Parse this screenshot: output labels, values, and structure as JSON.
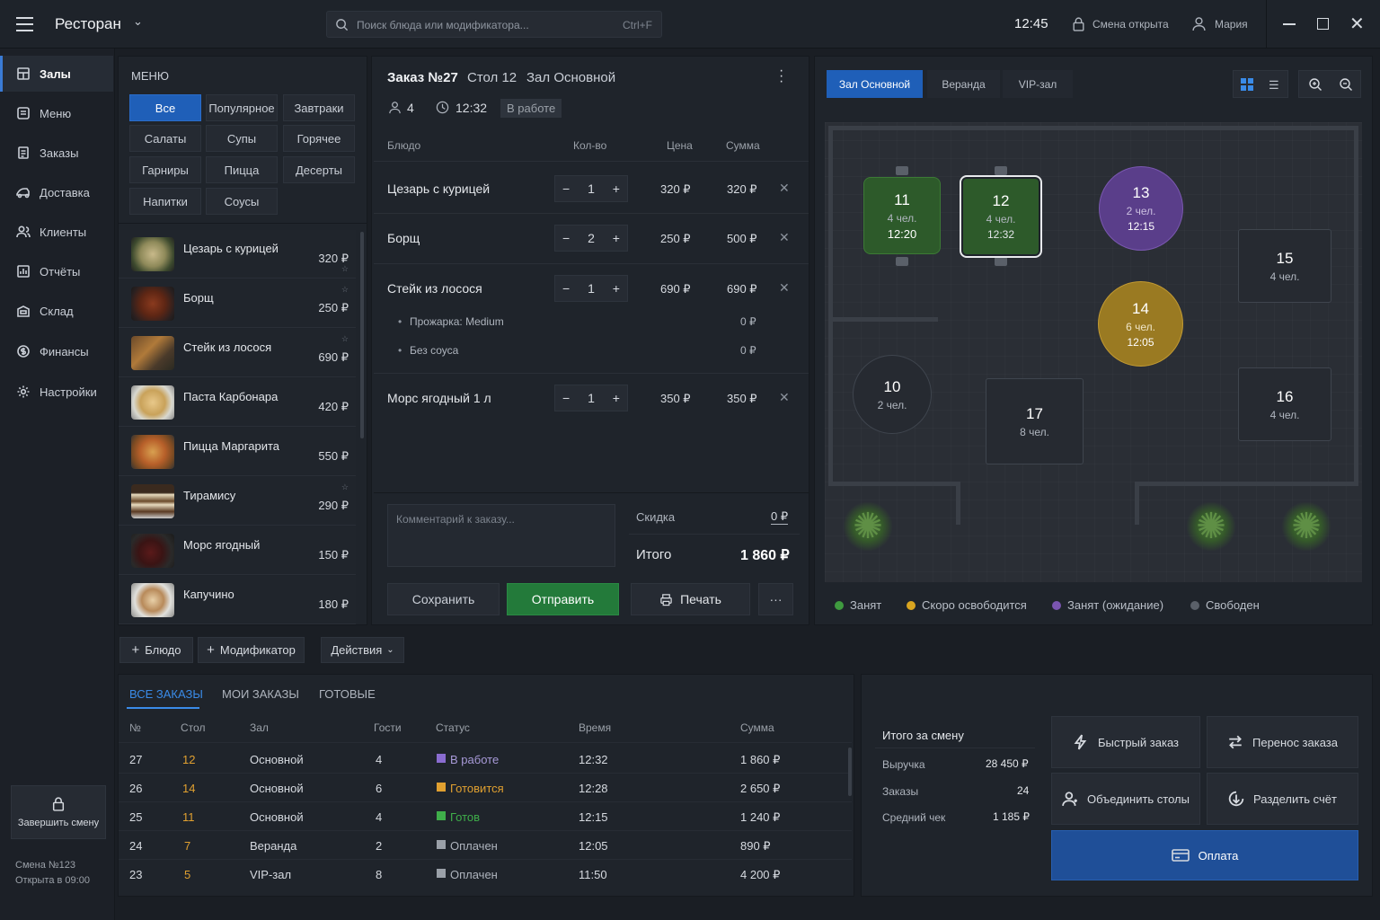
{
  "app": {
    "title": "Ресторан"
  },
  "search": {
    "placeholder": "Поиск блюда или модификатора...",
    "shortcut": "Ctrl+F"
  },
  "header": {
    "time": "12:45",
    "shift_status": "Смена открыта",
    "user": "Мария"
  },
  "sidebar": {
    "items": [
      {
        "label": "Залы",
        "icon": "hall-icon"
      },
      {
        "label": "Меню",
        "icon": "menu-icon"
      },
      {
        "label": "Заказы",
        "icon": "orders-icon"
      },
      {
        "label": "Доставка",
        "icon": "delivery-icon"
      },
      {
        "label": "Клиенты",
        "icon": "clients-icon"
      },
      {
        "label": "Отчёты",
        "icon": "reports-icon"
      },
      {
        "label": "Склад",
        "icon": "warehouse-icon"
      },
      {
        "label": "Финансы",
        "icon": "finance-icon"
      },
      {
        "label": "Настройки",
        "icon": "settings-icon"
      }
    ],
    "end_shift": "Завершить смену",
    "shift_no": "Смена №123",
    "shift_opened": "Открыта в 09:00"
  },
  "menu": {
    "title": "МЕНЮ",
    "categories": [
      "Все",
      "Популярное",
      "Завтраки",
      "Салаты",
      "Супы",
      "Горячее",
      "Гарниры",
      "Пицца",
      "Десерты",
      "Напитки",
      "Соусы"
    ],
    "dishes": [
      {
        "name": "Цезарь с курицей",
        "price": "320 ₽"
      },
      {
        "name": "Борщ",
        "price": "250 ₽"
      },
      {
        "name": "Стейк из лосося",
        "price": "690 ₽"
      },
      {
        "name": "Паста Карбонара",
        "price": "420 ₽"
      },
      {
        "name": "Пицца Маргарита",
        "price": "550 ₽"
      },
      {
        "name": "Тирамису",
        "price": "290 ₽"
      },
      {
        "name": "Морс ягодный",
        "price": "150 ₽"
      },
      {
        "name": "Капучино",
        "price": "180 ₽"
      }
    ]
  },
  "order": {
    "title": "Заказ №27",
    "table": "Стол 12",
    "hall": "Зал Основной",
    "guests": "4",
    "time": "12:32",
    "status": "В работе",
    "columns": {
      "dish": "Блюдо",
      "qty": "Кол-во",
      "price": "Цена",
      "sum": "Сумма"
    },
    "items": [
      {
        "name": "Цезарь с курицей",
        "qty": "1",
        "price": "320 ₽",
        "sum": "320 ₽"
      },
      {
        "name": "Борщ",
        "qty": "2",
        "price": "250 ₽",
        "sum": "500 ₽"
      },
      {
        "name": "Стейк из лосося",
        "qty": "1",
        "price": "690 ₽",
        "sum": "690 ₽"
      },
      {
        "name": "Морс ягодный 1 л",
        "qty": "1",
        "price": "350 ₽",
        "sum": "350 ₽"
      }
    ],
    "modifiers": [
      {
        "name": "Прожарка: Medium",
        "sum": "0 ₽"
      },
      {
        "name": "Без соуса",
        "sum": "0 ₽"
      }
    ],
    "comment_placeholder": "Комментарий к заказу...",
    "discount_label": "Скидка",
    "discount_value": "0 ₽",
    "total_label": "Итого",
    "total_value": "1 860 ₽",
    "save": "Сохранить",
    "send": "Отправить",
    "print": "Печать",
    "more": "···"
  },
  "floor": {
    "tabs": [
      "Зал Основной",
      "Веранда",
      "VIP-зал"
    ],
    "tables": [
      {
        "num": "11",
        "guests": "4 чел.",
        "time": "12:20"
      },
      {
        "num": "12",
        "guests": "4 чел.",
        "time": "12:32"
      },
      {
        "num": "13",
        "guests": "2 чел.",
        "time": "12:15"
      },
      {
        "num": "15",
        "guests": "4 чел."
      },
      {
        "num": "14",
        "guests": "6 чел.",
        "time": "12:05"
      },
      {
        "num": "10",
        "guests": "2 чел."
      },
      {
        "num": "17",
        "guests": "8 чел."
      },
      {
        "num": "16",
        "guests": "4 чел."
      }
    ],
    "legend": [
      {
        "label": "Занят",
        "color": "#3f9a3f"
      },
      {
        "label": "Скоро освободится",
        "color": "#d9a520"
      },
      {
        "label": "Занят (ожидание)",
        "color": "#7a55b0"
      },
      {
        "label": "Свободен",
        "color": "#5a6069"
      }
    ]
  },
  "toolbar": {
    "add_dish": "Блюдо",
    "add_modifier": "Модификатор",
    "actions": "Действия"
  },
  "orders_list": {
    "tabs": [
      "ВСЕ ЗАКАЗЫ",
      "МОИ ЗАКАЗЫ",
      "ГОТОВЫЕ"
    ],
    "columns": [
      "№",
      "Стол",
      "Зал",
      "Гости",
      "Статус",
      "Время",
      "Сумма"
    ],
    "rows": [
      {
        "no": "27",
        "table": "12",
        "hall": "Основной",
        "guests": "4",
        "status": "В работе",
        "status_color": "#8a6cd0",
        "time": "12:32",
        "sum": "1 860 ₽"
      },
      {
        "no": "26",
        "table": "14",
        "hall": "Основной",
        "guests": "6",
        "status": "Готовится",
        "status_color": "#e0a030",
        "time": "12:28",
        "sum": "2 650 ₽"
      },
      {
        "no": "25",
        "table": "11",
        "hall": "Основной",
        "guests": "4",
        "status": "Готов",
        "status_color": "#3fae4a",
        "time": "12:15",
        "sum": "1 240 ₽"
      },
      {
        "no": "24",
        "table": "7",
        "hall": "Веранда",
        "guests": "2",
        "status": "Оплачен",
        "status_color": "#9aa0a8",
        "time": "12:05",
        "sum": "890 ₽"
      },
      {
        "no": "23",
        "table": "5",
        "hall": "VIP-зал",
        "guests": "8",
        "status": "Оплачен",
        "status_color": "#9aa0a8",
        "time": "11:50",
        "sum": "4 200 ₽"
      }
    ]
  },
  "shift_summary": {
    "title": "Итого за смену",
    "revenue_label": "Выручка",
    "revenue": "28 450 ₽",
    "orders_label": "Заказы",
    "orders": "24",
    "avg_label": "Средний чек",
    "avg": "1 185 ₽"
  },
  "actions": {
    "quick_order": "Быстрый заказ",
    "transfer_order": "Перенос заказа",
    "merge_tables": "Объединить столы",
    "split_bill": "Разделить счёт",
    "pay": "Оплата"
  }
}
